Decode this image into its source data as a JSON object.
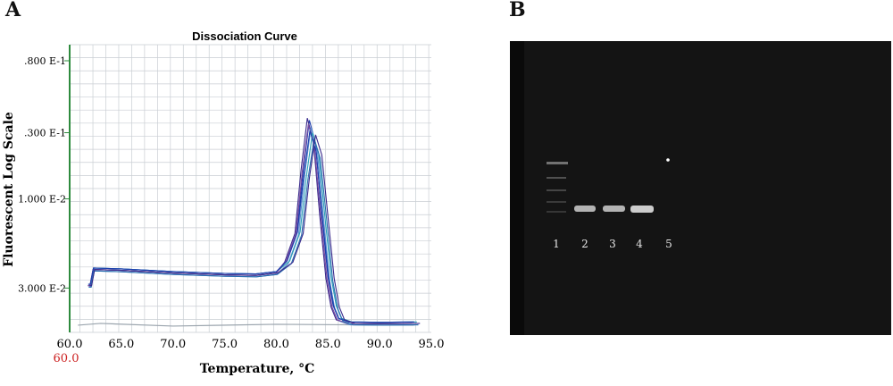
{
  "panels": {
    "a_label": "A",
    "b_label": "B"
  },
  "chart_data": {
    "type": "line",
    "title": "Dissociation Curve",
    "xlabel": "Temperature, °C",
    "ylabel": "Fluorescent Log Scale",
    "x_ticks": [
      "60.0",
      "65.0",
      "70.0",
      "75.0",
      "80.0",
      "85.0",
      "90.0",
      "95.0"
    ],
    "x_start_marker": "60.0",
    "y_ticks": [
      ".800 E-1",
      ".300 E-1",
      "1.000 E-2",
      "3.000 E-2"
    ],
    "xlim": [
      60,
      95
    ],
    "grid": true,
    "colors": {
      "lines": [
        "#1f3fae",
        "#3a2a8c",
        "#5a8fd0",
        "#2aa0b8",
        "#7a4aa0",
        "#2a6fb0"
      ],
      "baseline": "#9aa4ad",
      "marker": "#cc2222",
      "axis_left": "#2e8b3e",
      "grid": "#c9ced3"
    },
    "curve_template": {
      "x": [
        61.8,
        62.0,
        62.3,
        65,
        70,
        75,
        78,
        80,
        81,
        82,
        82.6,
        83.2,
        83.8,
        84.4,
        85.0,
        85.5,
        86.0,
        87,
        90,
        93.3
      ],
      "y": [
        0.34,
        0.34,
        0.25,
        0.255,
        0.27,
        0.28,
        0.283,
        0.27,
        0.21,
        0.05,
        -0.3,
        -0.58,
        -0.45,
        -0.05,
        0.3,
        0.46,
        0.53,
        0.55,
        0.552,
        0.55
      ]
    },
    "series_shifts": [
      {
        "dx": 0.0,
        "peak": 1.0
      },
      {
        "dx": -0.2,
        "peak": 1.02
      },
      {
        "dx": 0.15,
        "peak": 0.93
      },
      {
        "dx": 0.3,
        "peak": 0.88
      },
      {
        "dx": -0.1,
        "peak": 0.96
      },
      {
        "dx": 0.45,
        "peak": 0.82
      },
      {
        "dx": 0.05,
        "peak": 0.9
      },
      {
        "dx": 0.6,
        "peak": 0.86
      }
    ],
    "baseline": {
      "x": [
        60.8,
        93.3
      ],
      "y": 0.56
    }
  },
  "gel": {
    "lanes": [
      "1",
      "2",
      "3",
      "4",
      "5"
    ],
    "colors": {
      "background": "#141414",
      "band": "#d8d8d8"
    }
  }
}
